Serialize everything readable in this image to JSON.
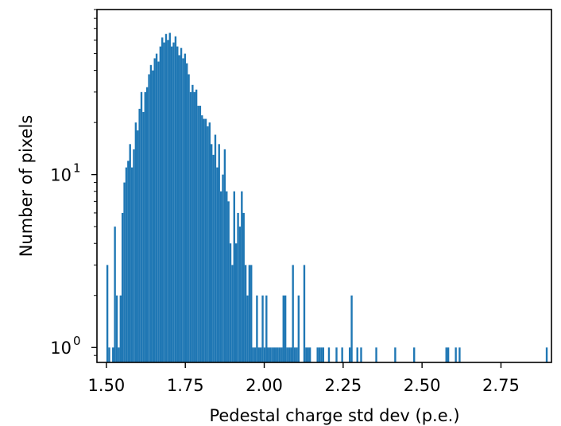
{
  "chart_data": {
    "type": "bar",
    "title": "",
    "xlabel": "Pedestal charge std dev (p.e.)",
    "ylabel": "Number of pixels",
    "xlim": [
      1.47,
      2.91
    ],
    "ylim": [
      0.82,
      90
    ],
    "y_scale": "log",
    "x_ticks": [
      "1.50",
      "1.75",
      "2.00",
      "2.25",
      "2.50",
      "2.75"
    ],
    "y_ticks": [
      {
        "value": 1,
        "base": "10",
        "exp": "0"
      },
      {
        "value": 10,
        "base": "10",
        "exp": "1"
      }
    ],
    "grid": false,
    "legend": "none",
    "bin_width": 0.006,
    "bar_color": "#1f77b4",
    "bins": [
      [
        1.5,
        3
      ],
      [
        1.506,
        1
      ],
      [
        1.518,
        1
      ],
      [
        1.524,
        5
      ],
      [
        1.53,
        2
      ],
      [
        1.536,
        1
      ],
      [
        1.542,
        2
      ],
      [
        1.548,
        6
      ],
      [
        1.554,
        9
      ],
      [
        1.56,
        11
      ],
      [
        1.566,
        12
      ],
      [
        1.572,
        15
      ],
      [
        1.578,
        11
      ],
      [
        1.584,
        14
      ],
      [
        1.59,
        20
      ],
      [
        1.596,
        18
      ],
      [
        1.602,
        24
      ],
      [
        1.608,
        30
      ],
      [
        1.614,
        23
      ],
      [
        1.62,
        30
      ],
      [
        1.626,
        32
      ],
      [
        1.632,
        38
      ],
      [
        1.638,
        43
      ],
      [
        1.644,
        40
      ],
      [
        1.65,
        47
      ],
      [
        1.656,
        50
      ],
      [
        1.662,
        45
      ],
      [
        1.668,
        55
      ],
      [
        1.674,
        62
      ],
      [
        1.68,
        58
      ],
      [
        1.686,
        65
      ],
      [
        1.692,
        60
      ],
      [
        1.698,
        66
      ],
      [
        1.704,
        55
      ],
      [
        1.71,
        58
      ],
      [
        1.716,
        63
      ],
      [
        1.722,
        55
      ],
      [
        1.728,
        49
      ],
      [
        1.734,
        54
      ],
      [
        1.74,
        47
      ],
      [
        1.746,
        50
      ],
      [
        1.752,
        44
      ],
      [
        1.758,
        38
      ],
      [
        1.764,
        30
      ],
      [
        1.77,
        33
      ],
      [
        1.776,
        30
      ],
      [
        1.782,
        31
      ],
      [
        1.788,
        25
      ],
      [
        1.794,
        25
      ],
      [
        1.8,
        22
      ],
      [
        1.806,
        21
      ],
      [
        1.812,
        21
      ],
      [
        1.818,
        19
      ],
      [
        1.824,
        20
      ],
      [
        1.83,
        15
      ],
      [
        1.836,
        13
      ],
      [
        1.842,
        17
      ],
      [
        1.848,
        11
      ],
      [
        1.854,
        15
      ],
      [
        1.86,
        8
      ],
      [
        1.866,
        10
      ],
      [
        1.872,
        14
      ],
      [
        1.878,
        8
      ],
      [
        1.884,
        7
      ],
      [
        1.89,
        4
      ],
      [
        1.896,
        3
      ],
      [
        1.902,
        8
      ],
      [
        1.908,
        4
      ],
      [
        1.914,
        6
      ],
      [
        1.92,
        5
      ],
      [
        1.926,
        8
      ],
      [
        1.932,
        6
      ],
      [
        1.938,
        3
      ],
      [
        1.944,
        2
      ],
      [
        1.95,
        3
      ],
      [
        1.956,
        3
      ],
      [
        1.962,
        1
      ],
      [
        1.968,
        1
      ],
      [
        1.974,
        2
      ],
      [
        1.98,
        1
      ],
      [
        1.986,
        1
      ],
      [
        1.992,
        2
      ],
      [
        1.998,
        1
      ],
      [
        2.004,
        2
      ],
      [
        2.01,
        1
      ],
      [
        2.016,
        1
      ],
      [
        2.022,
        1
      ],
      [
        2.028,
        1
      ],
      [
        2.034,
        1
      ],
      [
        2.04,
        1
      ],
      [
        2.046,
        1
      ],
      [
        2.052,
        1
      ],
      [
        2.058,
        2
      ],
      [
        2.064,
        2
      ],
      [
        2.07,
        1
      ],
      [
        2.076,
        1
      ],
      [
        2.082,
        1
      ],
      [
        2.088,
        3
      ],
      [
        2.094,
        1
      ],
      [
        2.1,
        1
      ],
      [
        2.106,
        2
      ],
      [
        2.124,
        3
      ],
      [
        2.13,
        1
      ],
      [
        2.136,
        1
      ],
      [
        2.142,
        1
      ],
      [
        2.166,
        1
      ],
      [
        2.172,
        1
      ],
      [
        2.178,
        1
      ],
      [
        2.184,
        1
      ],
      [
        2.202,
        1
      ],
      [
        2.226,
        1
      ],
      [
        2.244,
        1
      ],
      [
        2.268,
        1
      ],
      [
        2.274,
        2
      ],
      [
        2.292,
        1
      ],
      [
        2.304,
        1
      ],
      [
        2.352,
        1
      ],
      [
        2.412,
        1
      ],
      [
        2.472,
        1
      ],
      [
        2.574,
        1
      ],
      [
        2.58,
        1
      ],
      [
        2.604,
        1
      ],
      [
        2.616,
        1
      ],
      [
        2.892,
        1
      ]
    ]
  }
}
